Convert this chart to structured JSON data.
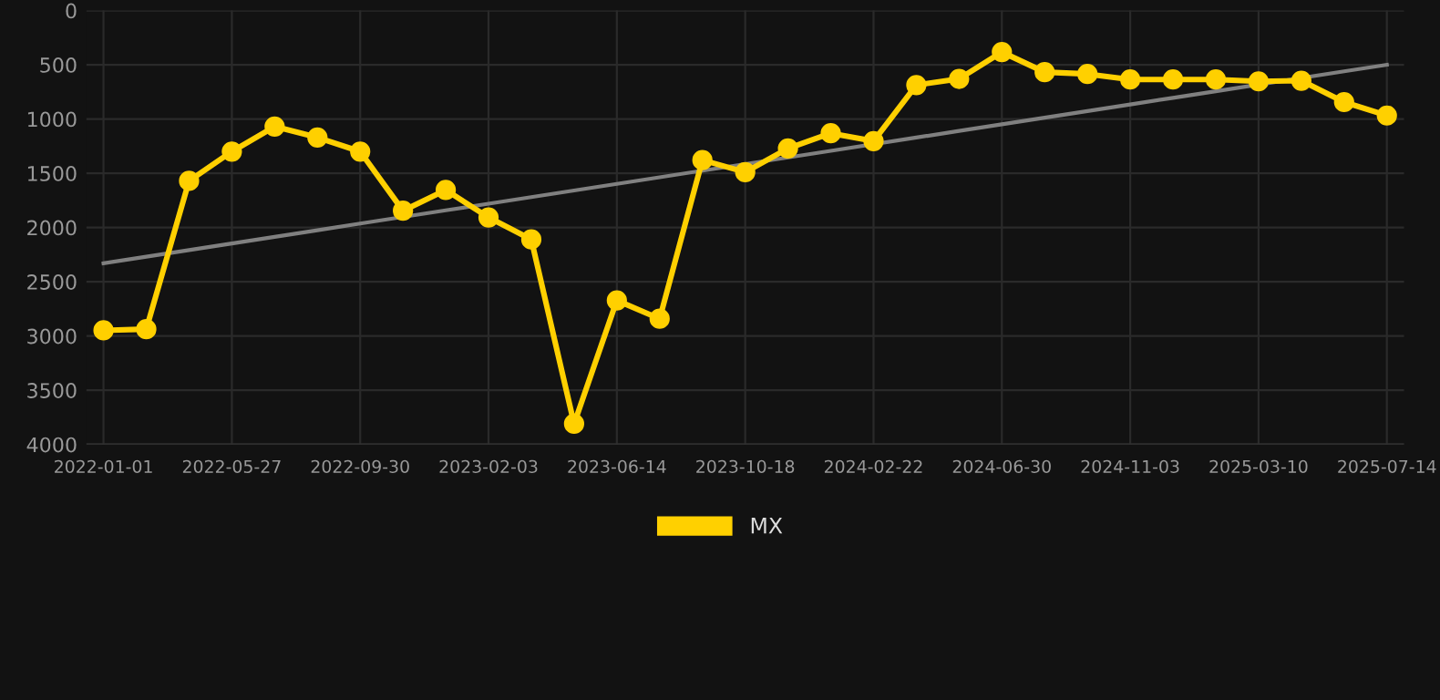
{
  "chart_data": {
    "type": "line",
    "categories": [
      "2022-01-01",
      null,
      null,
      "2022-05-27",
      null,
      null,
      "2022-09-30",
      null,
      null,
      "2023-02-03",
      null,
      null,
      "2023-06-14",
      null,
      null,
      "2023-10-18",
      null,
      null,
      "2024-02-22",
      null,
      null,
      "2024-06-30",
      null,
      null,
      "2024-11-03",
      null,
      null,
      "2025-03-10",
      null,
      null,
      "2025-07-14"
    ],
    "series": [
      {
        "name": "MX",
        "color": "#ffd000",
        "marker": "circle",
        "values": [
          2948,
          2937,
          1570,
          1300,
          1069,
          1170,
          1300,
          1845,
          1654,
          1907,
          2110,
          3809,
          2672,
          2841,
          1379,
          1490,
          1271,
          1131,
          1204,
          687,
          630,
          383,
          568,
          585,
          636,
          636,
          636,
          653,
          647,
          844,
          968
        ]
      },
      {
        "color": "#808080",
        "marker": "none",
        "values": [
          2330,
          2269,
          2208,
          2147,
          2086,
          2025,
          1964,
          1903,
          1842,
          1781,
          1720,
          1659,
          1598,
          1537,
          1476,
          1415,
          1354,
          1293,
          null,
          1171,
          1110,
          1049,
          988,
          927,
          866,
          805,
          744,
          null,
          null,
          561,
          500
        ]
      }
    ],
    "ylim": [
      4000,
      0
    ],
    "yticks": [
      0,
      500,
      1000,
      1500,
      2000,
      2500,
      3000,
      3500,
      4000
    ],
    "grid": true,
    "legend": "bottom"
  }
}
